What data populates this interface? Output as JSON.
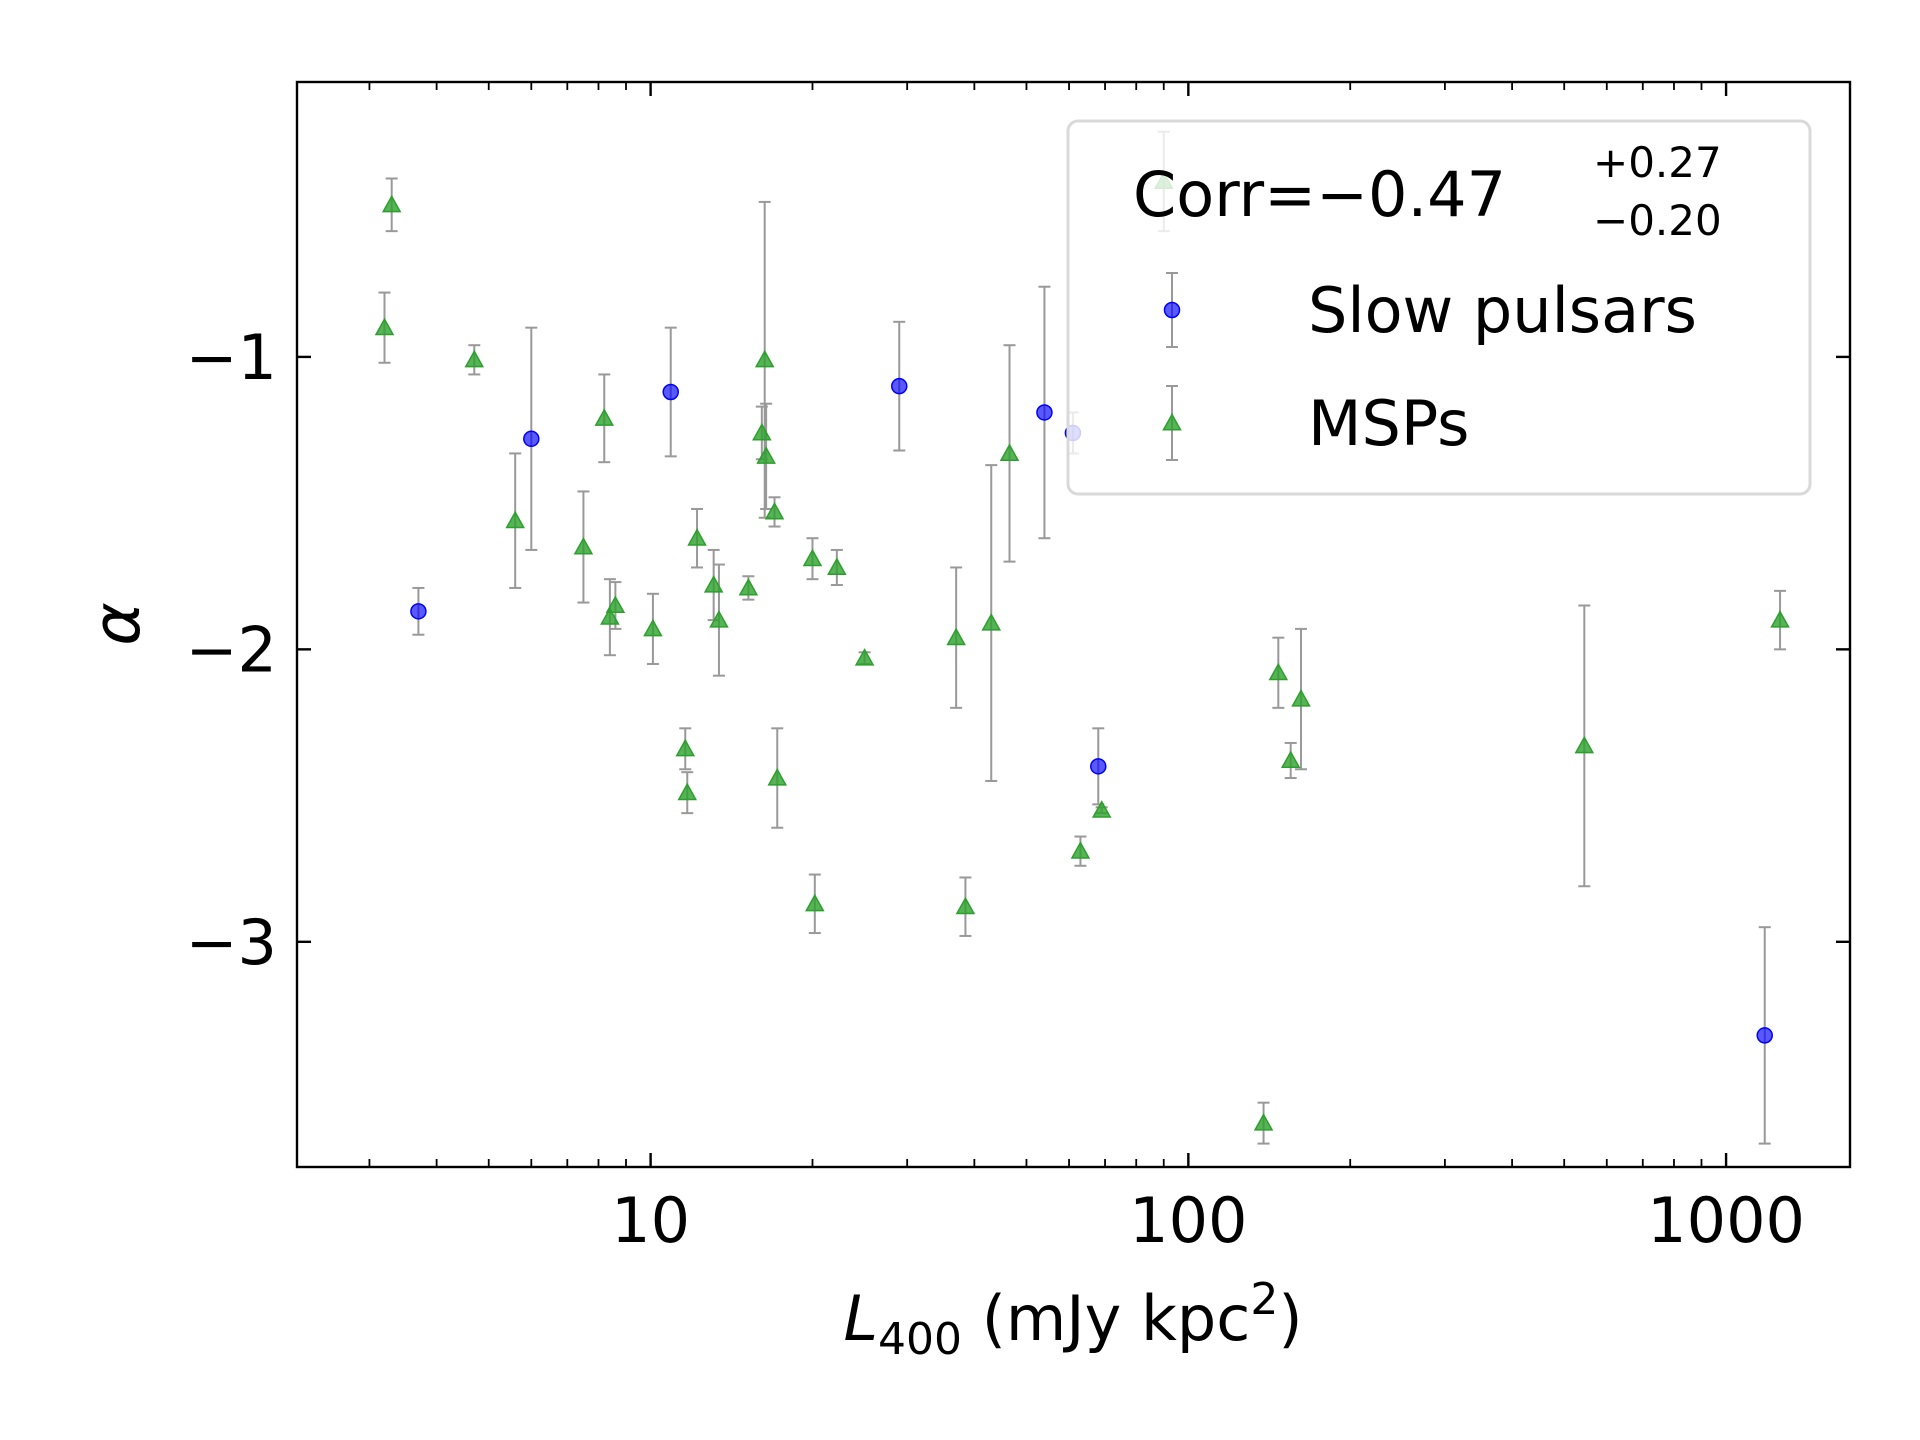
{
  "chart_data": {
    "type": "scatter",
    "xlabel": {
      "main": "L",
      "sub": "400",
      "rest": " (mJy kpc",
      "sup": "2",
      "end": ")"
    },
    "ylabel": "α",
    "xscale": "log",
    "xlim": [
      2.2,
      1700
    ],
    "ylim": [
      -3.77,
      -0.06
    ],
    "xticks": [
      10,
      100,
      1000
    ],
    "xtick_labels": [
      "10",
      "100",
      "1000"
    ],
    "yticks": [
      -1,
      -2,
      -3
    ],
    "ytick_labels": [
      "−1",
      "−2",
      "−3"
    ],
    "grid": false,
    "legend": {
      "position": "top-right",
      "title_main": "Corr=−0.47",
      "title_sup": "+0.27",
      "title_sub": "−0.20"
    },
    "errorbar_color": "#999999",
    "series": [
      {
        "name": "Slow pulsars",
        "marker": "circle",
        "color": "#0000ff",
        "points": [
          {
            "x": 3.7,
            "y": -1.87,
            "err": 0.08
          },
          {
            "x": 6.0,
            "y": -1.28,
            "err": 0.38
          },
          {
            "x": 10.9,
            "y": -1.12,
            "err": 0.22
          },
          {
            "x": 29.0,
            "y": -1.1,
            "err": 0.22
          },
          {
            "x": 54.0,
            "y": -1.19,
            "err": 0.43
          },
          {
            "x": 61.0,
            "y": -1.26,
            "err": 0.07
          },
          {
            "x": 68.0,
            "y": -2.4,
            "err": 0.13
          },
          {
            "x": 1180,
            "y": -3.32,
            "err": 0.37
          }
        ]
      },
      {
        "name": "MSPs",
        "marker": "triangle",
        "color": "#2ca02c",
        "points": [
          {
            "x": 3.2,
            "y": -0.9,
            "err": 0.12
          },
          {
            "x": 3.3,
            "y": -0.48,
            "err": 0.09
          },
          {
            "x": 4.7,
            "y": -1.01,
            "err": 0.05
          },
          {
            "x": 5.6,
            "y": -1.56,
            "err": 0.23
          },
          {
            "x": 7.5,
            "y": -1.65,
            "err": 0.19
          },
          {
            "x": 8.2,
            "y": -1.21,
            "err": 0.15
          },
          {
            "x": 8.4,
            "y": -1.89,
            "err": 0.13
          },
          {
            "x": 8.6,
            "y": -1.85,
            "err": 0.08
          },
          {
            "x": 10.1,
            "y": -1.93,
            "err": 0.12
          },
          {
            "x": 11.6,
            "y": -2.34,
            "err": 0.07
          },
          {
            "x": 11.7,
            "y": -2.49,
            "err": 0.07
          },
          {
            "x": 12.2,
            "y": -1.62,
            "err": 0.1
          },
          {
            "x": 13.1,
            "y": -1.78,
            "err": 0.12
          },
          {
            "x": 13.4,
            "y": -1.9,
            "err": 0.19
          },
          {
            "x": 15.2,
            "y": -1.79,
            "err": 0.04
          },
          {
            "x": 16.1,
            "y": -1.26,
            "err": 0.09
          },
          {
            "x": 16.3,
            "y": -1.01,
            "err": 0.54
          },
          {
            "x": 16.4,
            "y": -1.34,
            "err": 0.18
          },
          {
            "x": 17.0,
            "y": -1.53,
            "err": 0.05
          },
          {
            "x": 17.2,
            "y": -2.44,
            "err": 0.17
          },
          {
            "x": 20.0,
            "y": -1.69,
            "err": 0.07
          },
          {
            "x": 20.2,
            "y": -2.87,
            "err": 0.1
          },
          {
            "x": 22.2,
            "y": -1.72,
            "err": 0.06
          },
          {
            "x": 25.0,
            "y": -2.03,
            "err": 0.02
          },
          {
            "x": 37.0,
            "y": -1.96,
            "err": 0.24
          },
          {
            "x": 38.5,
            "y": -2.88,
            "err": 0.1
          },
          {
            "x": 43.0,
            "y": -1.91,
            "err": 0.54
          },
          {
            "x": 46.5,
            "y": -1.33,
            "err": 0.37
          },
          {
            "x": 63.0,
            "y": -2.69,
            "err": 0.05
          },
          {
            "x": 69.0,
            "y": -2.55,
            "err": 0.01
          },
          {
            "x": 90.0,
            "y": -0.4,
            "err": 0.17
          },
          {
            "x": 138,
            "y": -3.62,
            "err": 0.07
          },
          {
            "x": 147,
            "y": -2.08,
            "err": 0.12
          },
          {
            "x": 155,
            "y": -2.38,
            "err": 0.06
          },
          {
            "x": 162,
            "y": -2.17,
            "err": 0.24
          },
          {
            "x": 545,
            "y": -2.33,
            "err": 0.48
          },
          {
            "x": 1260,
            "y": -1.9,
            "err": 0.1
          }
        ]
      }
    ]
  }
}
